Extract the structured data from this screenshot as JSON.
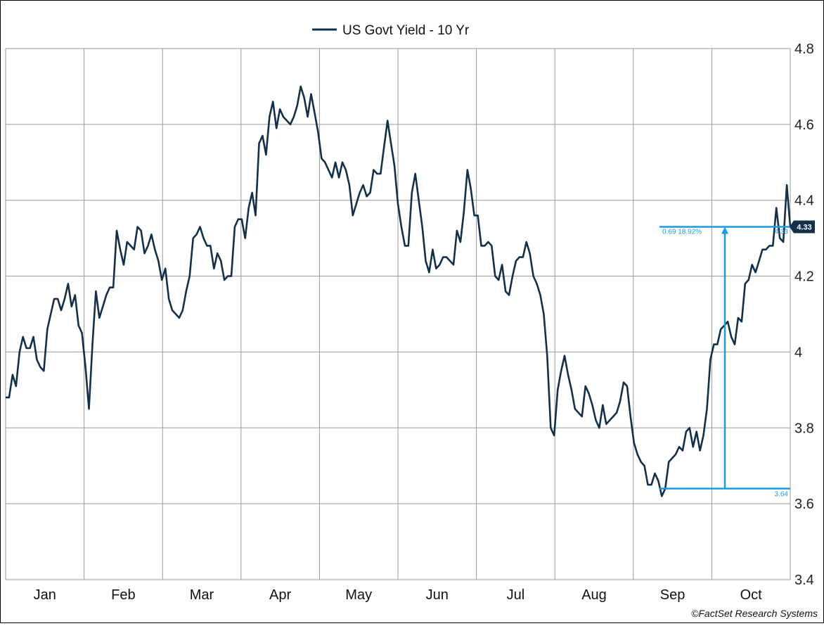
{
  "chart_data": {
    "type": "line",
    "title": "",
    "legend": "US Govt Yield - 10 Yr",
    "legend_position": "top-center",
    "xlabel": "",
    "ylabel": "",
    "ylim": [
      3.4,
      4.8
    ],
    "yticks": [
      "3.4",
      "3.6",
      "3.8",
      "4",
      "4.2",
      "4.4",
      "4.6",
      "4.8"
    ],
    "months": [
      "Jan",
      "Feb",
      "Mar",
      "Apr",
      "May",
      "Jun",
      "Jul",
      "Aug",
      "Sep",
      "Oct"
    ],
    "grid": true,
    "series": [
      {
        "name": "US Govt Yield - 10 Yr",
        "color": "#13304a",
        "values": [
          3.88,
          3.88,
          3.94,
          3.91,
          4.0,
          4.04,
          4.01,
          4.01,
          4.04,
          3.98,
          3.96,
          3.95,
          4.06,
          4.1,
          4.14,
          4.14,
          4.11,
          4.14,
          4.18,
          4.12,
          4.15,
          4.07,
          4.05,
          3.96,
          3.85,
          4.02,
          4.16,
          4.09,
          4.12,
          4.15,
          4.17,
          4.17,
          4.32,
          4.27,
          4.23,
          4.29,
          4.28,
          4.27,
          4.33,
          4.32,
          4.26,
          4.28,
          4.31,
          4.27,
          4.24,
          4.19,
          4.22,
          4.14,
          4.11,
          4.1,
          4.09,
          4.11,
          4.16,
          4.2,
          4.3,
          4.31,
          4.33,
          4.3,
          4.28,
          4.28,
          4.22,
          4.26,
          4.24,
          4.19,
          4.2,
          4.2,
          4.33,
          4.35,
          4.35,
          4.3,
          4.38,
          4.42,
          4.36,
          4.55,
          4.57,
          4.52,
          4.62,
          4.66,
          4.59,
          4.64,
          4.62,
          4.61,
          4.6,
          4.62,
          4.65,
          4.7,
          4.67,
          4.62,
          4.68,
          4.63,
          4.58,
          4.51,
          4.5,
          4.48,
          4.46,
          4.5,
          4.46,
          4.5,
          4.48,
          4.44,
          4.36,
          4.39,
          4.42,
          4.44,
          4.41,
          4.42,
          4.48,
          4.47,
          4.47,
          4.54,
          4.61,
          4.55,
          4.49,
          4.39,
          4.33,
          4.28,
          4.28,
          4.42,
          4.47,
          4.4,
          4.33,
          4.24,
          4.21,
          4.27,
          4.22,
          4.23,
          4.25,
          4.25,
          4.24,
          4.23,
          4.32,
          4.29,
          4.37,
          4.48,
          4.43,
          4.36,
          4.36,
          4.28,
          4.28,
          4.29,
          4.28,
          4.2,
          4.19,
          4.23,
          4.16,
          4.15,
          4.2,
          4.24,
          4.25,
          4.25,
          4.29,
          4.26,
          4.2,
          4.18,
          4.15,
          4.1,
          3.99,
          3.8,
          3.78,
          3.9,
          3.95,
          3.99,
          3.94,
          3.9,
          3.85,
          3.84,
          3.83,
          3.91,
          3.89,
          3.86,
          3.82,
          3.8,
          3.86,
          3.81,
          3.82,
          3.83,
          3.84,
          3.87,
          3.92,
          3.91,
          3.83,
          3.76,
          3.73,
          3.71,
          3.7,
          3.65,
          3.65,
          3.68,
          3.66,
          3.62,
          3.64,
          3.71,
          3.72,
          3.73,
          3.75,
          3.74,
          3.79,
          3.8,
          3.75,
          3.79,
          3.74,
          3.78,
          3.85,
          3.98,
          4.02,
          4.02,
          4.06,
          4.07,
          4.08,
          4.04,
          4.02,
          4.09,
          4.08,
          4.18,
          4.19,
          4.23,
          4.21,
          4.24,
          4.27,
          4.27,
          4.28,
          4.28,
          4.38,
          4.3,
          4.29,
          4.44,
          4.33
        ]
      }
    ],
    "annotation": {
      "low_value": 3.64,
      "high_value": 4.33,
      "change_label": "0.69 18.92%",
      "low_label": "3.64",
      "high_label": "4.33",
      "color": "#1a9be0"
    },
    "last_value_label": "4.33",
    "credit": "©FactSet Research Systems"
  }
}
